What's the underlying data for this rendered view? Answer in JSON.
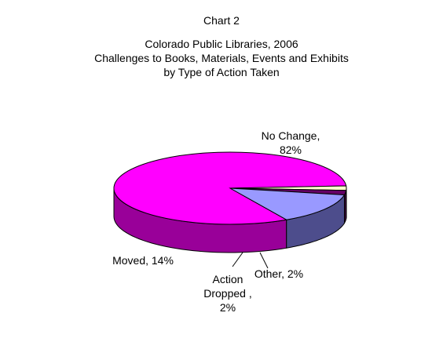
{
  "chart_data": {
    "type": "pie",
    "style": "3d",
    "title": "Chart 2",
    "subtitle": [
      "Colorado Public Libraries, 2006",
      "Challenges to Books, Materials, Events and Exhibits",
      "by Type of Action Taken"
    ],
    "slices": [
      {
        "label": "No Change",
        "value": 82,
        "unit": "%",
        "color": "#FF00FF",
        "side_color": "#990099",
        "data_label": [
          "No Change,",
          "82%"
        ]
      },
      {
        "label": "Other",
        "value": 2,
        "unit": "%",
        "color": "#FFFFCC",
        "side_color": "#8A8A60",
        "data_label": [
          "Other, 2%"
        ]
      },
      {
        "label": "Action Dropped",
        "value": 2,
        "unit": "%",
        "color": "#660066",
        "side_color": "#3D003D",
        "data_label": [
          "Action",
          "Dropped ,",
          "2%"
        ]
      },
      {
        "label": "Moved",
        "value": 14,
        "unit": "%",
        "color": "#9999FF",
        "side_color": "#4D4D8C",
        "data_label": [
          "Moved, 14%"
        ]
      }
    ],
    "legend": "none",
    "background": "#FFFFFF"
  }
}
